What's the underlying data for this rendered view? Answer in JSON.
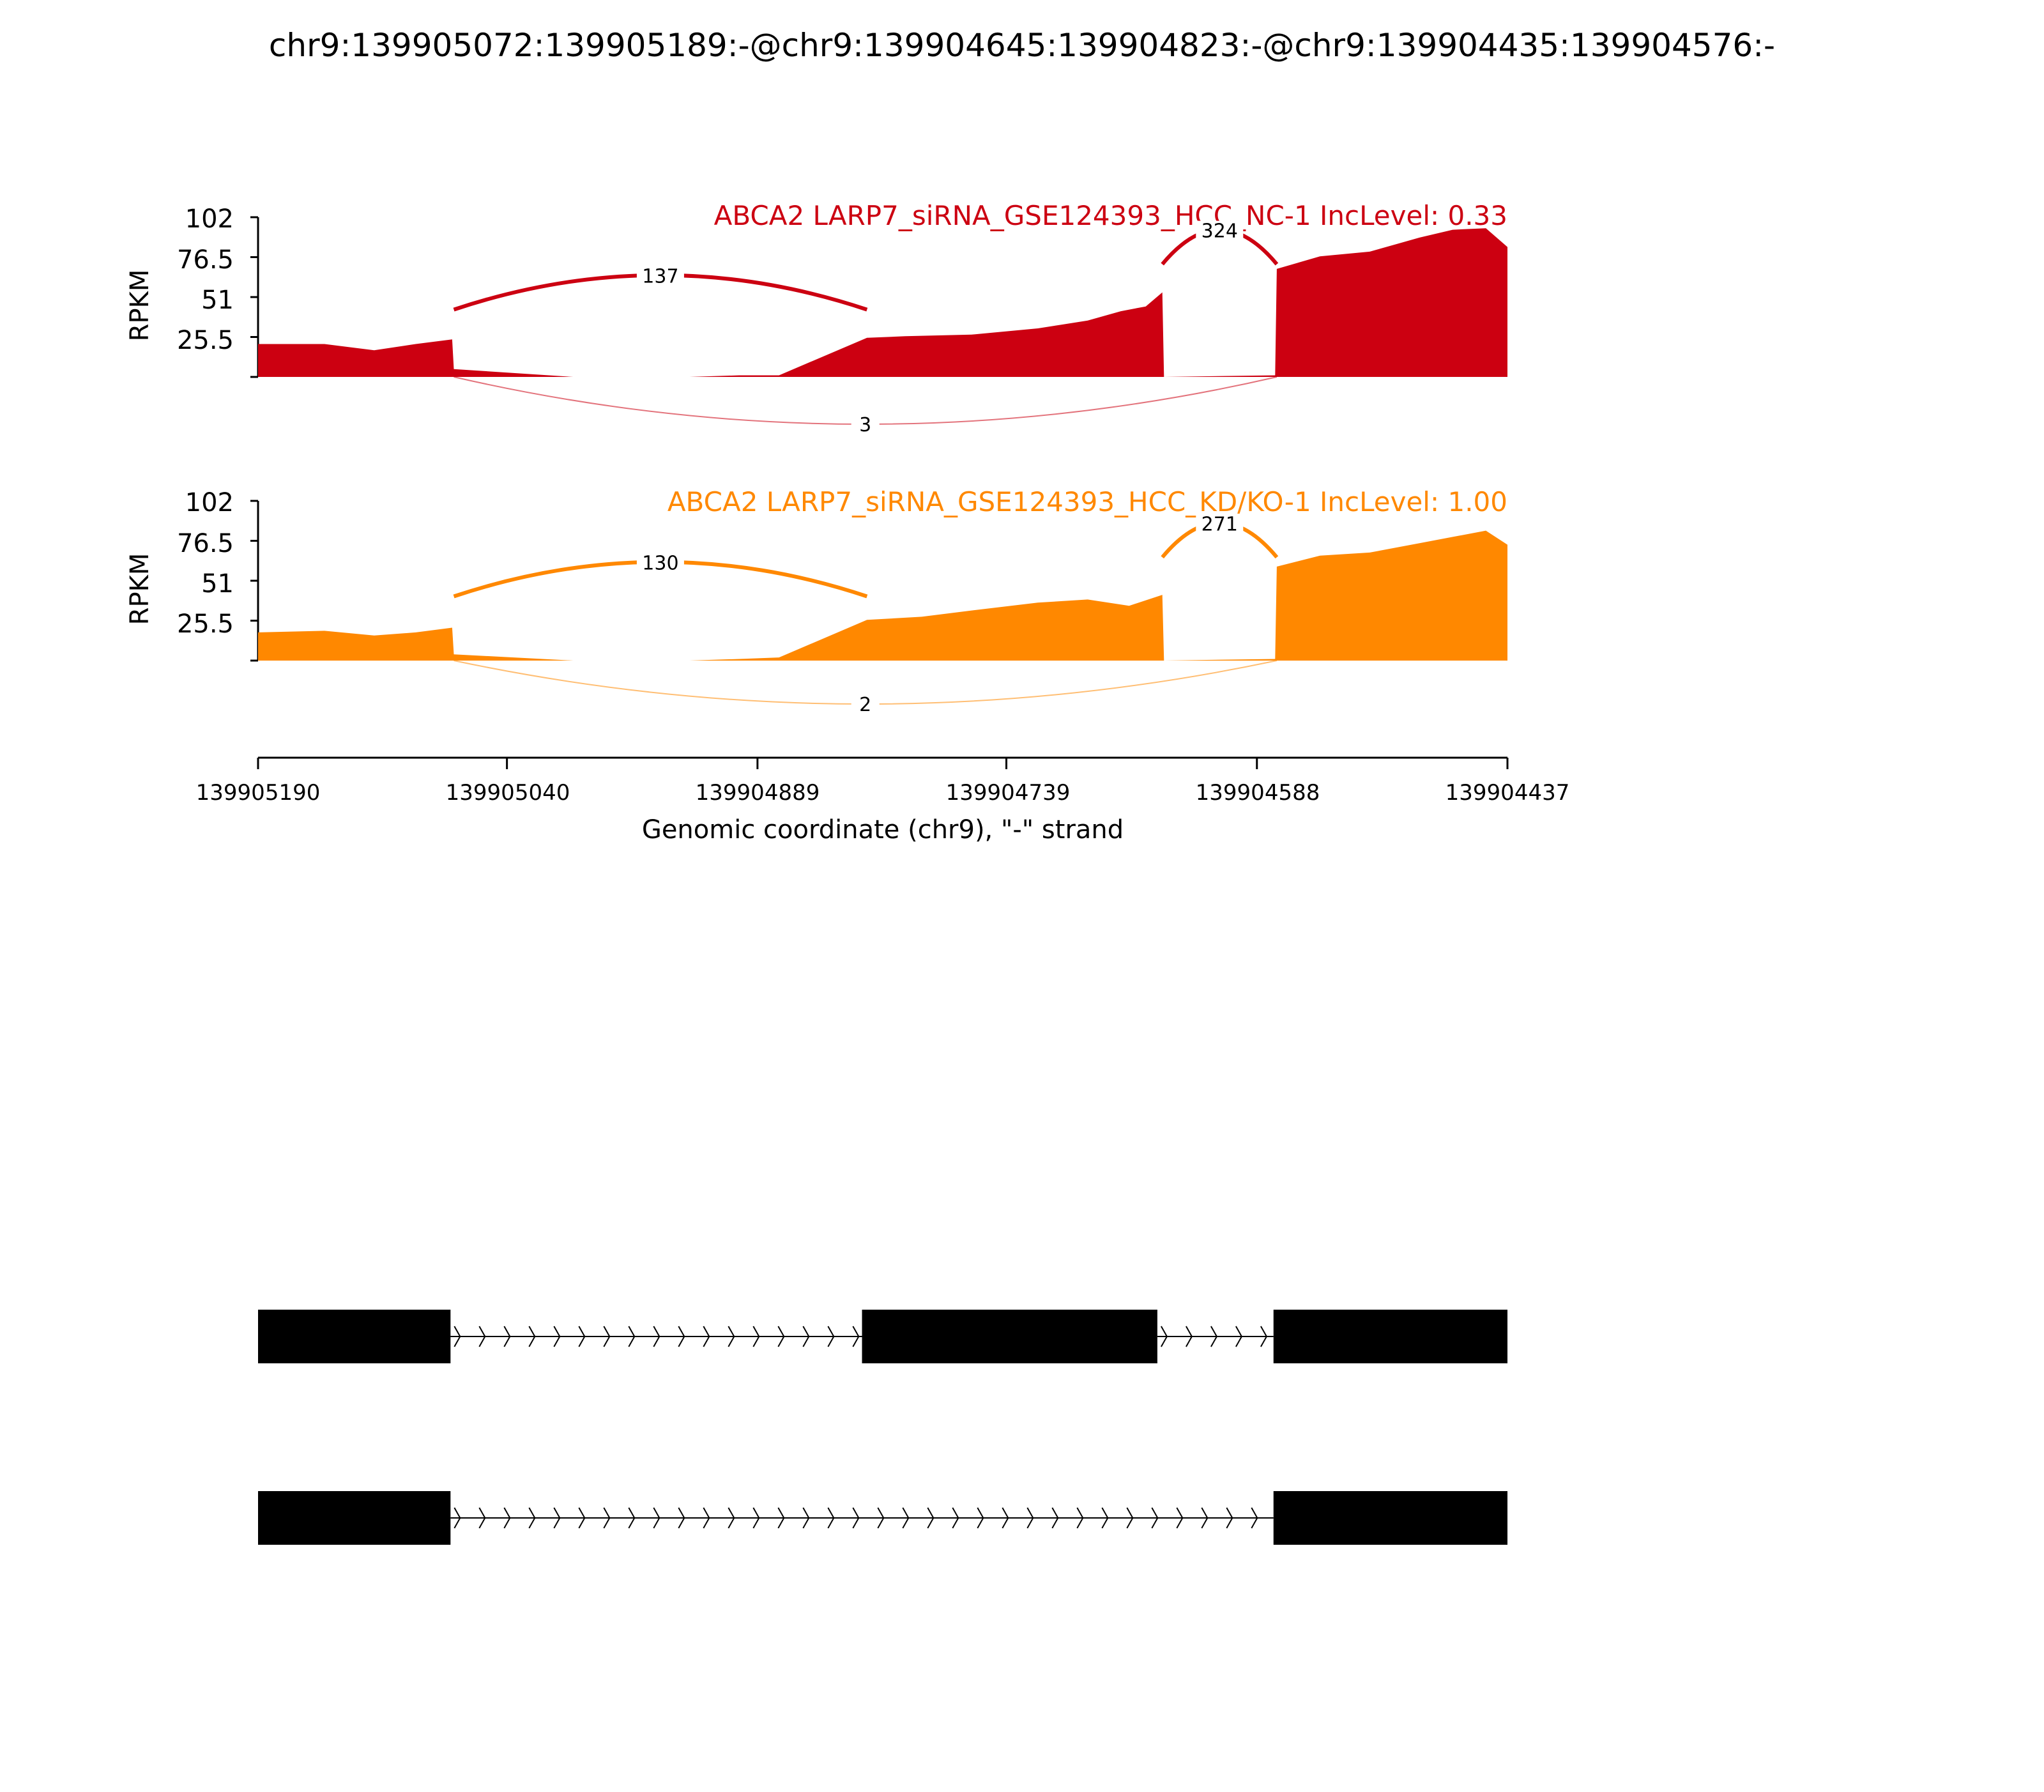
{
  "title": "chr9:139905072:139905189:-@chr9:139904645:139904823:-@chr9:139904435:139904576:-",
  "chart_data": [
    {
      "type": "area",
      "title": "ABCA2 LARP7_siRNA_GSE124393_HCC_NC-1 IncLevel: 0.33",
      "color": "#cc0011",
      "ylabel": "RPKM",
      "yticks": [
        "102",
        "76.5",
        "51",
        "25.5"
      ],
      "ylim": [
        0,
        102
      ],
      "coverage": [
        [
          139905190,
          21
        ],
        [
          139905150,
          21
        ],
        [
          139905120,
          17
        ],
        [
          139905095,
          21
        ],
        [
          139905073,
          24
        ],
        [
          139905072,
          5
        ],
        [
          139905000,
          0
        ],
        [
          139904930,
          0
        ],
        [
          139904900,
          1
        ],
        [
          139904876,
          1
        ],
        [
          139904823,
          25
        ],
        [
          139904800,
          26
        ],
        [
          139904760,
          27
        ],
        [
          139904720,
          31
        ],
        [
          139904690,
          36
        ],
        [
          139904670,
          42
        ],
        [
          139904655,
          45
        ],
        [
          139904645,
          54
        ],
        [
          139904644,
          0
        ],
        [
          139904577,
          1
        ],
        [
          139904576,
          69
        ],
        [
          139904550,
          77
        ],
        [
          139904520,
          80
        ],
        [
          139904490,
          89
        ],
        [
          139904470,
          94
        ],
        [
          139904450,
          95
        ],
        [
          139904437,
          83
        ]
      ],
      "junctions": [
        {
          "label": "137",
          "side": "above",
          "from": 139905072,
          "to": 139904823,
          "height": 55
        },
        {
          "label": "324",
          "side": "above",
          "from": 139904645,
          "to": 139904576,
          "height": 84
        },
        {
          "label": "3",
          "side": "below",
          "from": 139905072,
          "to": 139904576
        }
      ]
    },
    {
      "type": "area",
      "title": "ABCA2 LARP7_siRNA_GSE124393_HCC_KD/KO-1 IncLevel: 1.00",
      "color": "#ff8800",
      "ylabel": "RPKM",
      "yticks": [
        "102",
        "76.5",
        "51",
        "25.5"
      ],
      "ylim": [
        0,
        102
      ],
      "coverage": [
        [
          139905190,
          18
        ],
        [
          139905150,
          19
        ],
        [
          139905120,
          16
        ],
        [
          139905095,
          18
        ],
        [
          139905073,
          21
        ],
        [
          139905072,
          4
        ],
        [
          139905000,
          0
        ],
        [
          139904930,
          0
        ],
        [
          139904900,
          1
        ],
        [
          139904876,
          2
        ],
        [
          139904823,
          26
        ],
        [
          139904790,
          28
        ],
        [
          139904760,
          32
        ],
        [
          139904720,
          37
        ],
        [
          139904690,
          39
        ],
        [
          139904665,
          35
        ],
        [
          139904645,
          42
        ],
        [
          139904644,
          0
        ],
        [
          139904577,
          1
        ],
        [
          139904576,
          60
        ],
        [
          139904550,
          67
        ],
        [
          139904520,
          69
        ],
        [
          139904490,
          75
        ],
        [
          139904470,
          79
        ],
        [
          139904450,
          83
        ],
        [
          139904437,
          74
        ]
      ],
      "junctions": [
        {
          "label": "130",
          "side": "above",
          "from": 139905072,
          "to": 139904823,
          "height": 53
        },
        {
          "label": "271",
          "side": "above",
          "from": 139904645,
          "to": 139904576,
          "height": 78
        },
        {
          "label": "2",
          "side": "below",
          "from": 139905072,
          "to": 139904576
        }
      ]
    }
  ],
  "x_axis": {
    "label": "Genomic coordinate (chr9), \"-\" strand",
    "ticks": [
      "139905190",
      "139905040",
      "139904889",
      "139904739",
      "139904588",
      "139904437"
    ],
    "range": [
      139905190,
      139904437
    ]
  },
  "isoforms": [
    {
      "exons": [
        [
          139905190,
          139905074
        ],
        [
          139904826,
          139904648
        ],
        [
          139904578,
          139904437
        ]
      ]
    },
    {
      "exons": [
        [
          139905190,
          139905074
        ],
        [
          139904578,
          139904437
        ]
      ]
    }
  ]
}
